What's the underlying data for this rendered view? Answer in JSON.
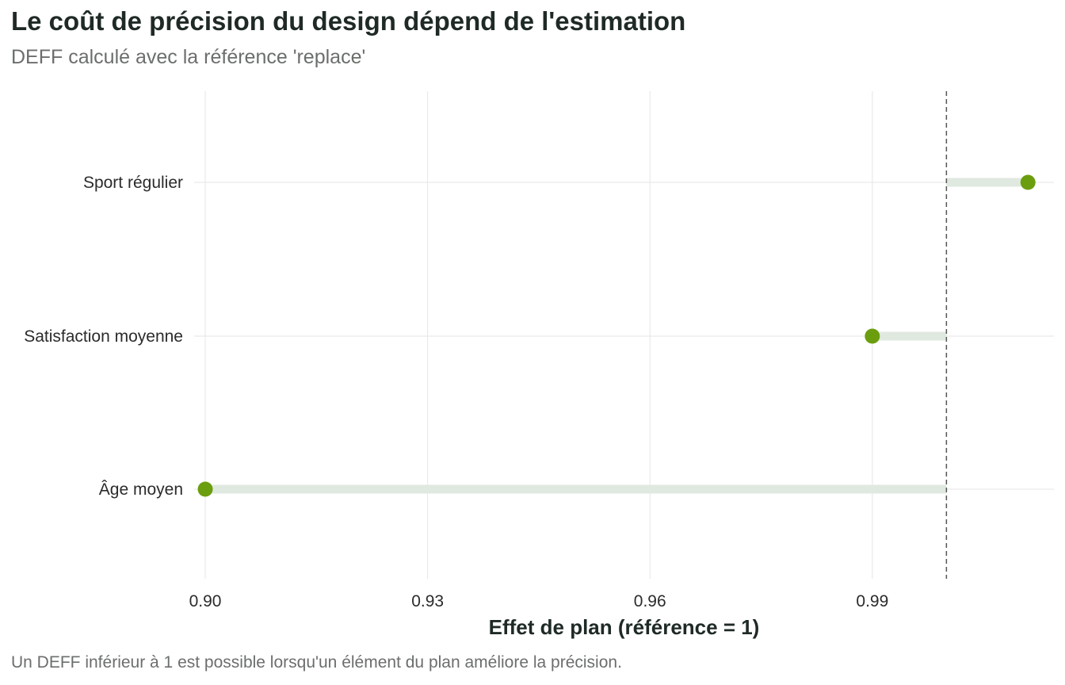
{
  "title": "Le coût de précision du design dépend de l'estimation",
  "subtitle": "DEFF calculé avec la référence 'replace'",
  "caption": "Un DEFF inférieur à 1 est possible lorsqu'un élément du plan améliore la précision.",
  "colors": {
    "point": "#6b9e0f",
    "segment": "#e0e9e0",
    "grid": "#e6e6e6",
    "reference_line": "#555555"
  },
  "chart_data": {
    "type": "dot-lollipop",
    "xlabel": "Effet de plan (référence = 1)",
    "ylabel": "",
    "xlim": [
      0.8985,
      1.0145
    ],
    "x_ticks": [
      0.9,
      0.93,
      0.96,
      0.99
    ],
    "x_tick_labels": [
      "0.90",
      "0.93",
      "0.96",
      "0.99"
    ],
    "reference_value": 1,
    "categories": [
      "Sport régulier",
      "Satisfaction moyenne",
      "Âge moyen"
    ],
    "values": [
      1.011,
      0.99,
      0.9
    ],
    "grid": true
  }
}
